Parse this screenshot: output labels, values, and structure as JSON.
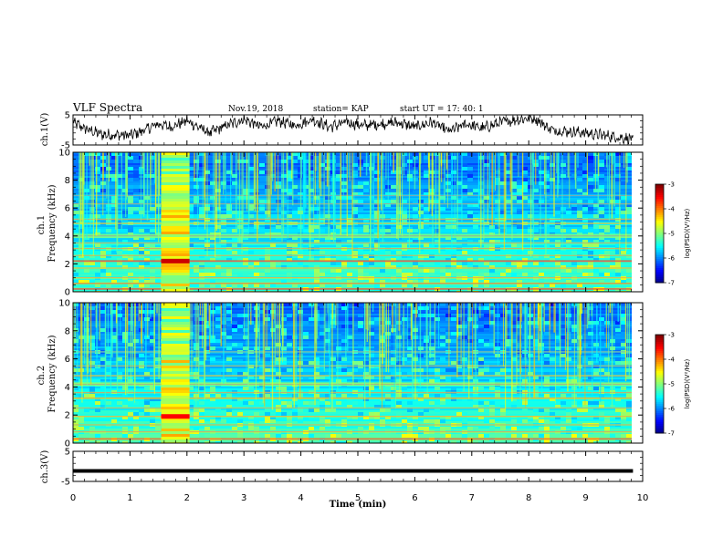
{
  "header": {
    "title": "VLF Spectra",
    "date": "Nov.19, 2018",
    "station": "station= KAP",
    "start_time": "start  UT =   17: 40: 1"
  },
  "chart_data": [
    {
      "type": "line",
      "name": "ch1-waveform",
      "ylabel": "ch.1(V)",
      "ylim": [
        -5,
        5
      ],
      "yticks": [
        "5",
        "-5"
      ],
      "xlim": [
        0,
        10
      ],
      "x_data_extent": [
        0,
        9.83
      ],
      "trace_color": "#000000",
      "envelope_anchors": {
        "x": [
          0,
          0.2,
          0.5,
          1.0,
          1.2,
          1.5,
          1.7,
          2.0,
          2.4,
          2.7,
          3.0,
          3.3,
          3.6,
          3.9,
          4.2,
          4.5,
          4.8,
          5.1,
          5.4,
          5.7,
          6.0,
          6.3,
          6.6,
          6.9,
          7.2,
          7.5,
          7.8,
          8.1,
          8.4,
          8.7,
          9.0,
          9.3,
          9.6,
          9.83
        ],
        "y": [
          2.5,
          0.5,
          -1.5,
          -1.8,
          -0.5,
          2.0,
          1.0,
          3.0,
          -1.0,
          1.5,
          3.5,
          1.0,
          3.0,
          1.5,
          3.5,
          1.0,
          2.5,
          1.5,
          2.0,
          2.5,
          1.0,
          2.5,
          -0.5,
          2.0,
          0.5,
          2.5,
          3.5,
          4.0,
          0.0,
          -0.5,
          -1.0,
          -1.8,
          -2.5,
          -3.0
        ]
      }
    },
    {
      "type": "heatmap",
      "name": "ch1-spectrogram",
      "ylabel": "ch.1\nFrequency (kHz)",
      "xlim": [
        0,
        10
      ],
      "x_data_extent": [
        0,
        9.83
      ],
      "ylim": [
        0,
        10
      ],
      "yticks": [
        "0",
        "2",
        "4",
        "6",
        "8",
        "10"
      ],
      "colorbar": {
        "range": [
          -7,
          -3
        ],
        "ticks": [
          "-3",
          "-4",
          "-5",
          "-6",
          "-7"
        ],
        "label": "log(PSD)(V²/Hz)",
        "colormap": "jet"
      },
      "burst_interval_min": [
        1.55,
        2.05
      ],
      "bands_khz": [
        {
          "f": 0.2,
          "level": -3.8,
          "width": 0.1
        },
        {
          "f": 0.6,
          "level": -4.2,
          "width": 0.08
        },
        {
          "f": 1.0,
          "level": -4.5,
          "width": 0.1
        },
        {
          "f": 1.7,
          "level": -4.6,
          "width": 0.1
        },
        {
          "f": 2.2,
          "level": -3.9,
          "width": 0.12
        },
        {
          "f": 2.6,
          "level": -4.8,
          "width": 0.08
        },
        {
          "f": 3.1,
          "level": -4.6,
          "width": 0.1
        },
        {
          "f": 3.5,
          "level": -4.8,
          "width": 0.08
        },
        {
          "f": 4.0,
          "level": -5.0,
          "width": 0.3
        },
        {
          "f": 4.9,
          "level": -4.6,
          "width": 0.1
        },
        {
          "f": 5.2,
          "level": -4.7,
          "width": 0.08
        },
        {
          "f": 6.3,
          "level": -5.1,
          "width": 0.1
        },
        {
          "f": 6.9,
          "level": -5.3,
          "width": 0.08
        }
      ],
      "burst_band_khz": {
        "f": 2.2,
        "level": -3.3
      }
    },
    {
      "type": "heatmap",
      "name": "ch2-spectrogram",
      "ylabel": "ch.2\nFrequency (kHz)",
      "xlim": [
        0,
        10
      ],
      "x_data_extent": [
        0,
        9.83
      ],
      "ylim": [
        0,
        10
      ],
      "yticks": [
        "0",
        "2",
        "4",
        "6",
        "8",
        "10"
      ],
      "colorbar": {
        "range": [
          -7,
          -3
        ],
        "ticks": [
          "-3",
          "-4",
          "-5",
          "-6",
          "-7"
        ],
        "label": "log(PSD)(V²/Hz)",
        "colormap": "jet"
      },
      "burst_interval_min": [
        1.55,
        2.05
      ],
      "bands_khz": [
        {
          "f": 0.3,
          "level": -4.0,
          "width": 0.12
        },
        {
          "f": 0.8,
          "level": -4.6,
          "width": 0.1
        },
        {
          "f": 1.3,
          "level": -4.8,
          "width": 0.1
        },
        {
          "f": 1.9,
          "level": -4.5,
          "width": 0.1
        },
        {
          "f": 2.5,
          "level": -4.9,
          "width": 0.08
        },
        {
          "f": 3.2,
          "level": -4.4,
          "width": 0.12
        },
        {
          "f": 3.6,
          "level": -4.7,
          "width": 0.1
        },
        {
          "f": 4.2,
          "level": -4.9,
          "width": 0.25
        },
        {
          "f": 4.8,
          "level": -4.7,
          "width": 0.1
        },
        {
          "f": 5.5,
          "level": -5.0,
          "width": 0.1
        },
        {
          "f": 6.5,
          "level": -5.2,
          "width": 0.08
        }
      ],
      "burst_band_khz": {
        "f": 1.9,
        "level": -3.5
      }
    },
    {
      "type": "line",
      "name": "ch3-waveform",
      "ylabel": "ch.3(V)",
      "ylim": [
        -5,
        5
      ],
      "yticks": [
        "5",
        "-5"
      ],
      "xlim": [
        0,
        10
      ],
      "x_data_extent": [
        0,
        9.83
      ],
      "constant_level_v": -1.5,
      "trace_color": "#000000"
    }
  ],
  "xaxis": {
    "label": "Time  (min)",
    "ticks": [
      "0",
      "1",
      "2",
      "3",
      "4",
      "5",
      "6",
      "7",
      "8",
      "9",
      "10"
    ],
    "range": [
      0,
      10
    ]
  },
  "colors": {
    "jet": [
      "#00007f",
      "#0000ff",
      "#007fff",
      "#00ffff",
      "#7fff7f",
      "#ffff00",
      "#ff7f00",
      "#ff0000",
      "#7f0000"
    ]
  }
}
